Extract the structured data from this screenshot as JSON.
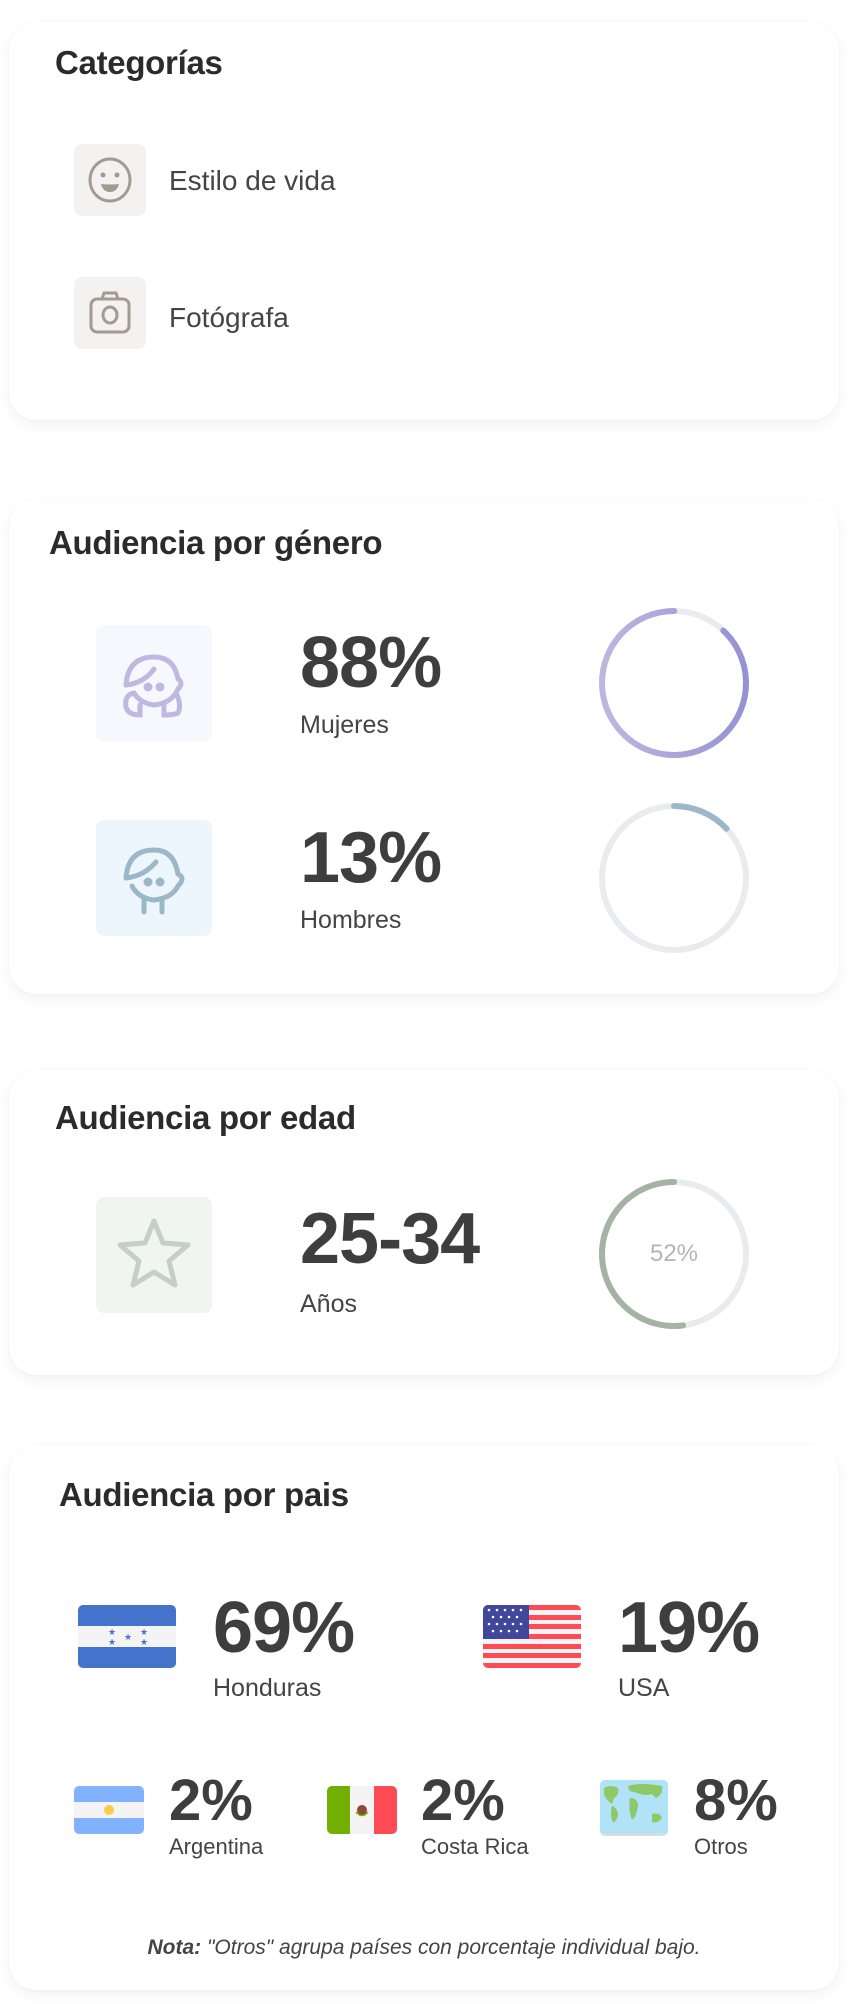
{
  "categories": {
    "title": "Categorías",
    "items": [
      {
        "label": "Estilo de vida",
        "icon": "smiley-icon"
      },
      {
        "label": "Fotógrafa",
        "icon": "camera-icon"
      }
    ]
  },
  "gender": {
    "title": "Audiencia por género",
    "items": [
      {
        "value": "88%",
        "label": "Mujeres",
        "percent": 88,
        "icon": "girl-face-icon",
        "color": "#9b97d4"
      },
      {
        "value": "13%",
        "label": "Hombres",
        "percent": 13,
        "icon": "boy-face-icon",
        "color": "#9bb8c9"
      }
    ]
  },
  "age": {
    "title": "Audiencia por edad",
    "value": "25-34",
    "label": "Años",
    "ring_label": "52%",
    "percent": 52,
    "icon": "star-icon",
    "color": "#9fb09f"
  },
  "country": {
    "title": "Audiencia por pais",
    "items": [
      {
        "value": "69%",
        "label": "Honduras",
        "icon": "honduras-flag-icon"
      },
      {
        "value": "19%",
        "label": "USA",
        "icon": "usa-flag-icon"
      },
      {
        "value": "2%",
        "label": "Argentina",
        "icon": "argentina-flag-icon"
      },
      {
        "value": "2%",
        "label": "Costa Rica",
        "icon": "mexico-flag-icon"
      },
      {
        "value": "8%",
        "label": "Otros",
        "icon": "world-map-icon"
      }
    ],
    "note_bold": "Nota:",
    "note_text": " \"Otros\" agrupa países con porcentaje individual bajo."
  }
}
